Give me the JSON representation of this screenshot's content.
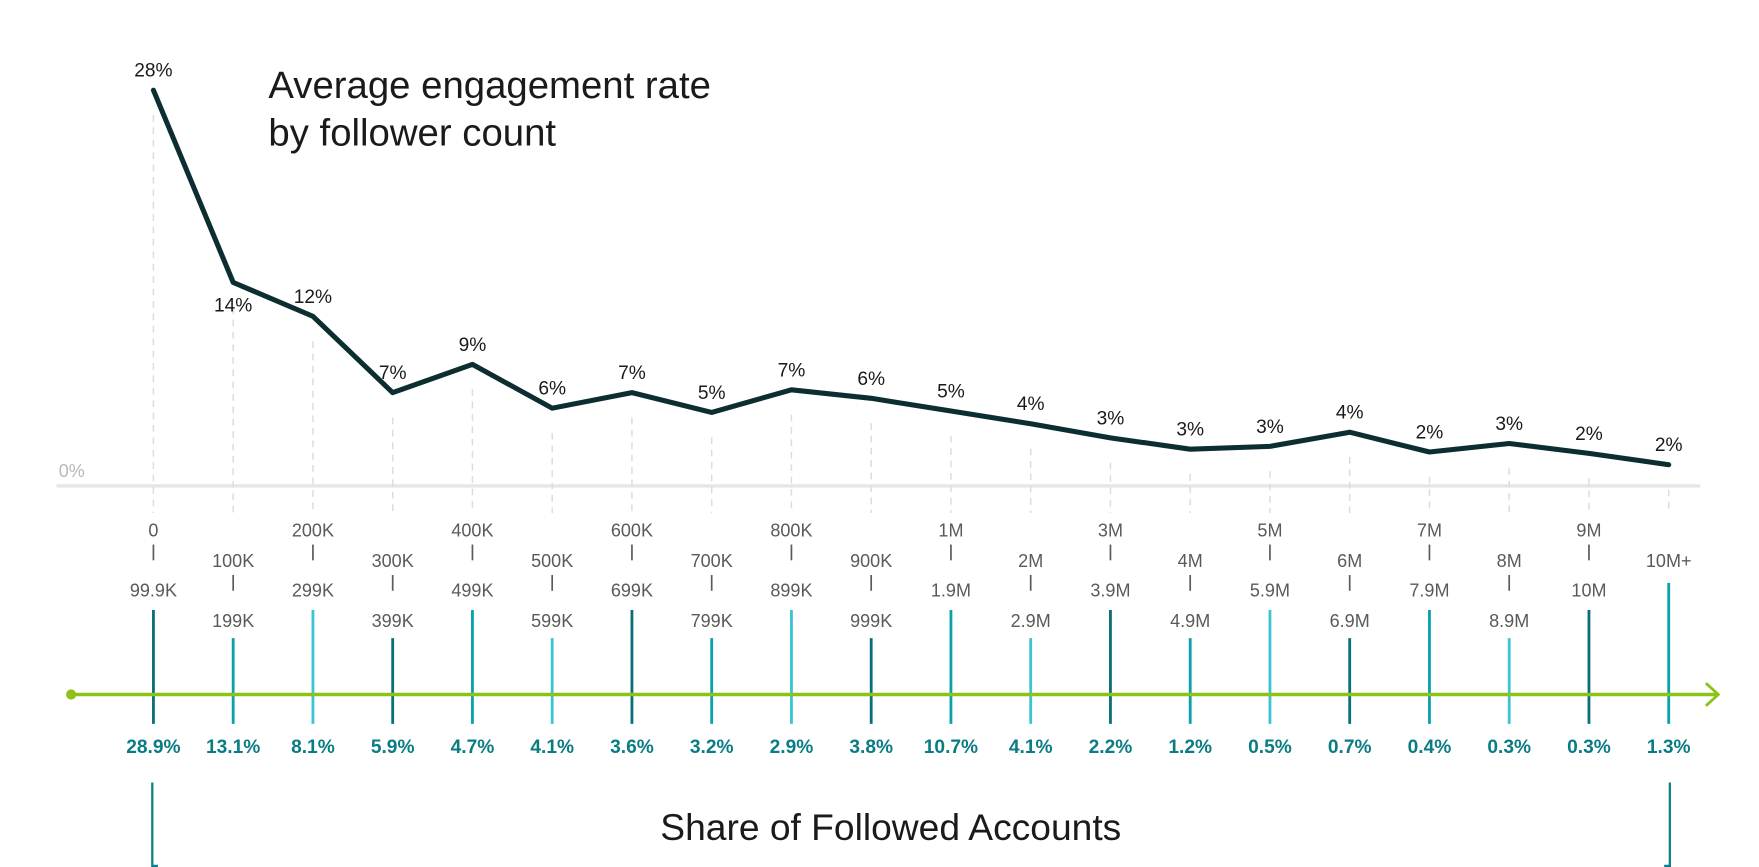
{
  "chart_data": {
    "type": "line",
    "title_lines": [
      "Average engagement rate",
      "by follower count"
    ],
    "ylabel": "",
    "ylim": [
      0,
      28
    ],
    "y_zero_label": "0%",
    "categories": [
      {
        "from": "0",
        "to": "99.9K"
      },
      {
        "from": "100K",
        "to": "199K"
      },
      {
        "from": "200K",
        "to": "299K"
      },
      {
        "from": "300K",
        "to": "399K"
      },
      {
        "from": "400K",
        "to": "499K"
      },
      {
        "from": "500K",
        "to": "599K"
      },
      {
        "from": "600K",
        "to": "699K"
      },
      {
        "from": "700K",
        "to": "799K"
      },
      {
        "from": "800K",
        "to": "899K"
      },
      {
        "from": "900K",
        "to": "999K"
      },
      {
        "from": "1M",
        "to": "1.9M"
      },
      {
        "from": "2M",
        "to": "2.9M"
      },
      {
        "from": "3M",
        "to": "3.9M"
      },
      {
        "from": "4M",
        "to": "4.9M"
      },
      {
        "from": "5M",
        "to": "5.9M"
      },
      {
        "from": "6M",
        "to": "6.9M"
      },
      {
        "from": "7M",
        "to": "7.9M"
      },
      {
        "from": "8M",
        "to": "8.9M"
      },
      {
        "from": "9M",
        "to": "10M"
      },
      {
        "from": "10M+",
        "to": ""
      }
    ],
    "series": [
      {
        "name": "Average engagement rate",
        "color": "#0d2e30",
        "values": [
          28,
          14.4,
          12,
          6.6,
          8.6,
          5.5,
          6.6,
          5.2,
          6.8,
          6.2,
          5.3,
          4.4,
          3.4,
          2.6,
          2.8,
          3.8,
          2.4,
          3.0,
          2.3,
          1.5
        ],
        "labels": [
          "28%",
          "14%",
          "12%",
          "7%",
          "9%",
          "6%",
          "7%",
          "5%",
          "7%",
          "6%",
          "5%",
          "4%",
          "3%",
          "3%",
          "3%",
          "4%",
          "2%",
          "3%",
          "2%",
          "2%"
        ]
      }
    ],
    "share_of_followed_accounts": {
      "label": "Share of Followed Accounts",
      "values": [
        "28.9%",
        "13.1%",
        "8.1%",
        "5.9%",
        "4.7%",
        "4.1%",
        "3.6%",
        "3.2%",
        "2.9%",
        "3.8%",
        "10.7%",
        "4.1%",
        "2.2%",
        "1.2%",
        "0.5%",
        "0.7%",
        "0.4%",
        "0.3%",
        "0.3%",
        "1.3%"
      ]
    },
    "colors": {
      "line": "#0d2e30",
      "axis_arrow": "#8cc21a",
      "tick_cycle": [
        "#0a6f7a",
        "#0aa1ad",
        "#3cc3d6"
      ],
      "share_text": "#0a7c84",
      "label_gray": "#5a5a5a",
      "zero_gray": "#b8b8b8"
    }
  }
}
